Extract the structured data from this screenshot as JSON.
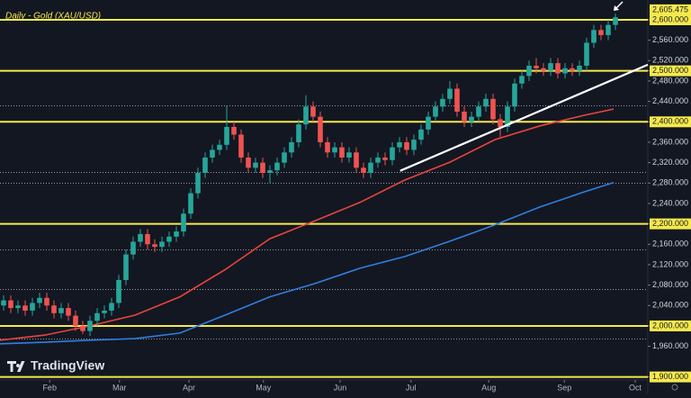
{
  "chart_data": {
    "type": "candlestick",
    "title": "Daily - Gold (XAU/USD)",
    "brand": "TradingView",
    "xlim": [
      0,
      90
    ],
    "xticks": [
      {
        "value": 6.9,
        "label": "Feb"
      },
      {
        "value": 16.6,
        "label": "Mar"
      },
      {
        "value": 26.25,
        "label": "Apr"
      },
      {
        "value": 36.6,
        "label": "May"
      },
      {
        "value": 47.25,
        "label": "Jun"
      },
      {
        "value": 57.1,
        "label": "Jul"
      },
      {
        "value": 67.9,
        "label": "Aug"
      },
      {
        "value": 78.4,
        "label": "Sep"
      },
      {
        "value": 88.25,
        "label": "Oct"
      }
    ],
    "ylim": [
      1894,
      2638.8
    ],
    "yticks": [
      {
        "value": 1900,
        "label": "1,900.000"
      },
      {
        "value": 1960,
        "label": "1,960.000"
      },
      {
        "value": 2000,
        "label": "2,000.000"
      },
      {
        "value": 2040,
        "label": "2,040.000"
      },
      {
        "value": 2080,
        "label": "2,080.000"
      },
      {
        "value": 2120,
        "label": "2,120.000"
      },
      {
        "value": 2160,
        "label": "2,160.000"
      },
      {
        "value": 2200,
        "label": "2,200.000"
      },
      {
        "value": 2240,
        "label": "2,240.000"
      },
      {
        "value": 2280,
        "label": "2,280.000"
      },
      {
        "value": 2320,
        "label": "2,320.000"
      },
      {
        "value": 2360,
        "label": "2,360.000"
      },
      {
        "value": 2400,
        "label": "2,400.000"
      },
      {
        "value": 2440,
        "label": "2,440.000"
      },
      {
        "value": 2480,
        "label": "2,480.000"
      },
      {
        "value": 2500,
        "label": "2,500.000"
      },
      {
        "value": 2520,
        "label": "2,520.000"
      },
      {
        "value": 2560,
        "label": "2,560.000"
      },
      {
        "value": 2600,
        "label": "2,600.000"
      }
    ],
    "last_price": {
      "value": 2605.475,
      "label": "2,605.475"
    },
    "levels": [
      1900,
      2000,
      2200,
      2400,
      2500,
      2600
    ],
    "level_color": "#f5e94d",
    "dotted_levels": [
      1975,
      2072,
      2150,
      2280,
      2302,
      2432
    ],
    "up_color": "#26a69a",
    "down_color": "#ef5350",
    "candles": {
      "open": [
        2040,
        2050,
        2035,
        2040,
        2030,
        2045,
        2055,
        2040,
        2025,
        2035,
        2020,
        2000,
        1990,
        2010,
        2025,
        2030,
        2045,
        2090,
        2140,
        2165,
        2180,
        2160,
        2155,
        2165,
        2175,
        2185,
        2220,
        2260,
        2300,
        2330,
        2345,
        2355,
        2390,
        2375,
        2330,
        2310,
        2320,
        2300,
        2305,
        2320,
        2340,
        2360,
        2395,
        2430,
        2410,
        2360,
        2340,
        2350,
        2330,
        2340,
        2310,
        2300,
        2320,
        2330,
        2325,
        2350,
        2360,
        2345,
        2365,
        2385,
        2410,
        2430,
        2445,
        2465,
        2420,
        2400,
        2410,
        2430,
        2445,
        2405,
        2390,
        2430,
        2475,
        2490,
        2510,
        2505,
        2500,
        2515,
        2495,
        2505,
        2500,
        2510,
        2555,
        2580,
        2570,
        2590
      ],
      "high": [
        2060,
        2060,
        2050,
        2050,
        2055,
        2065,
        2065,
        2050,
        2045,
        2045,
        2030,
        2010,
        2020,
        2035,
        2040,
        2055,
        2100,
        2150,
        2175,
        2190,
        2190,
        2170,
        2175,
        2185,
        2195,
        2230,
        2270,
        2310,
        2340,
        2355,
        2365,
        2432,
        2400,
        2385,
        2340,
        2330,
        2330,
        2315,
        2330,
        2350,
        2370,
        2405,
        2452,
        2440,
        2420,
        2370,
        2360,
        2360,
        2350,
        2350,
        2320,
        2330,
        2340,
        2340,
        2360,
        2370,
        2370,
        2375,
        2395,
        2420,
        2440,
        2455,
        2480,
        2475,
        2430,
        2420,
        2440,
        2455,
        2455,
        2415,
        2440,
        2485,
        2500,
        2520,
        2525,
        2515,
        2525,
        2525,
        2515,
        2515,
        2520,
        2565,
        2590,
        2590,
        2600,
        2612
      ],
      "low": [
        2030,
        2025,
        2025,
        2020,
        2020,
        2035,
        2030,
        2015,
        2015,
        2010,
        1990,
        1984,
        1980,
        2000,
        2015,
        2020,
        2035,
        2080,
        2130,
        2155,
        2150,
        2145,
        2145,
        2155,
        2165,
        2175,
        2210,
        2250,
        2290,
        2320,
        2335,
        2345,
        2365,
        2320,
        2300,
        2300,
        2290,
        2280,
        2295,
        2310,
        2330,
        2350,
        2385,
        2400,
        2350,
        2330,
        2330,
        2320,
        2320,
        2300,
        2290,
        2290,
        2310,
        2315,
        2315,
        2340,
        2335,
        2335,
        2355,
        2375,
        2400,
        2420,
        2435,
        2410,
        2390,
        2390,
        2400,
        2420,
        2395,
        2370,
        2380,
        2420,
        2465,
        2480,
        2495,
        2490,
        2490,
        2485,
        2485,
        2490,
        2490,
        2500,
        2545,
        2560,
        2560,
        2580
      ],
      "close": [
        2050,
        2035,
        2040,
        2030,
        2045,
        2055,
        2040,
        2025,
        2035,
        2020,
        2000,
        1990,
        2010,
        2025,
        2030,
        2045,
        2090,
        2140,
        2165,
        2180,
        2160,
        2155,
        2165,
        2175,
        2185,
        2220,
        2260,
        2300,
        2330,
        2345,
        2355,
        2390,
        2375,
        2330,
        2310,
        2320,
        2300,
        2305,
        2320,
        2340,
        2360,
        2395,
        2430,
        2410,
        2360,
        2340,
        2350,
        2330,
        2340,
        2310,
        2300,
        2320,
        2330,
        2325,
        2350,
        2360,
        2345,
        2365,
        2385,
        2410,
        2430,
        2445,
        2465,
        2420,
        2400,
        2410,
        2430,
        2445,
        2405,
        2390,
        2430,
        2475,
        2490,
        2510,
        2505,
        2500,
        2515,
        2495,
        2505,
        2500,
        2510,
        2555,
        2580,
        2570,
        2590,
        2605
      ]
    },
    "series": [
      {
        "type": "line",
        "color": "#e8453c",
        "x": [
          0,
          6.25,
          12.5,
          18.75,
          25,
          31.25,
          37.5,
          43.75,
          50,
          56.25,
          62.5,
          68.75,
          75,
          81.25,
          85.25
        ],
        "values": [
          1972,
          1982,
          2000,
          2021,
          2057,
          2110,
          2171,
          2206,
          2242,
          2286,
          2321,
          2365,
          2392,
          2413,
          2425
        ]
      },
      {
        "type": "line",
        "color": "#2f7fe0",
        "x": [
          0,
          6.25,
          12.5,
          18.75,
          25,
          31.25,
          37.5,
          43.75,
          50,
          56.25,
          62.5,
          68.75,
          75,
          81.25,
          85.25
        ],
        "values": [
          1965,
          1968,
          1972,
          1975,
          1986,
          2021,
          2057,
          2083,
          2113,
          2136,
          2166,
          2198,
          2233,
          2263,
          2281
        ]
      }
    ],
    "trendline": {
      "x": [
        55.6,
        90
      ],
      "values": [
        2304,
        2512
      ],
      "color": "#ffffff"
    }
  }
}
